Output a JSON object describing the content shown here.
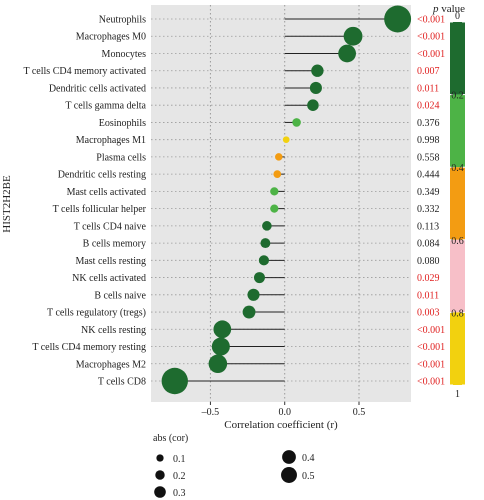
{
  "chart_data": {
    "type": "scatter",
    "xlabel": "Correlation coefficient (r)",
    "ylabel": "HIST2H2BE",
    "xlim": [
      -0.9,
      0.85
    ],
    "xticks": [
      {
        "value": -0.5,
        "label": "–0.5"
      },
      {
        "value": 0.0,
        "label": "0.0"
      },
      {
        "value": 0.5,
        "label": "0.5"
      }
    ],
    "grid": true,
    "categories": [
      "Neutrophils",
      "Macrophages M0",
      "Monocytes",
      "T cells CD4 memory activated",
      "Dendritic cells activated",
      "T cells gamma delta",
      "Eosinophils",
      "Macrophages M1",
      "Plasma cells",
      "Dendritic cells resting",
      "Mast cells activated",
      "T cells follicular helper",
      "T cells CD4 naive",
      "B cells memory",
      "Mast cells resting",
      "NK cells activated",
      "B cells naive",
      "T cells regulatory (tregs)",
      "NK cells resting",
      "T cells CD4 memory resting",
      "Macrophages M2",
      "T cells CD8"
    ],
    "r": [
      0.76,
      0.46,
      0.42,
      0.22,
      0.21,
      0.19,
      0.08,
      0.01,
      -0.04,
      -0.05,
      -0.07,
      -0.07,
      -0.12,
      -0.13,
      -0.14,
      -0.17,
      -0.21,
      -0.24,
      -0.42,
      -0.43,
      -0.45,
      -0.74
    ],
    "pvalues": [
      "<0.001",
      "<0.001",
      "<0.001",
      "0.007",
      "0.011",
      "0.024",
      "0.376",
      "0.998",
      "0.558",
      "0.444",
      "0.349",
      "0.332",
      "0.113",
      "0.084",
      "0.080",
      "0.029",
      "0.011",
      "0.003",
      "<0.001",
      "<0.001",
      "<0.001",
      "<0.001"
    ],
    "pvalue_numeric": [
      0.0005,
      0.0005,
      0.0005,
      0.007,
      0.011,
      0.024,
      0.376,
      0.998,
      0.558,
      0.444,
      0.349,
      0.332,
      0.113,
      0.084,
      0.08,
      0.029,
      0.011,
      0.003,
      0.0005,
      0.0005,
      0.0005,
      0.0005
    ],
    "significance_threshold": 0.05,
    "colorbar": {
      "title_italic": "p",
      "title_rest": " value",
      "ticks": [
        0,
        0.2,
        0.4,
        0.6,
        0.8,
        1
      ],
      "tick_labels": [
        "0",
        "0.2",
        "0.4",
        "0.6",
        "0.8",
        "1"
      ],
      "bands": [
        {
          "from": 0,
          "to": 0.2,
          "color": "#1e6b2f"
        },
        {
          "from": 0.2,
          "to": 0.4,
          "color": "#4db346"
        },
        {
          "from": 0.4,
          "to": 0.6,
          "color": "#f39c12"
        },
        {
          "from": 0.6,
          "to": 0.8,
          "color": "#f7bfc8"
        },
        {
          "from": 0.8,
          "to": 1.0,
          "color": "#f2d10f"
        }
      ]
    },
    "size_legend": {
      "title": "abs (cor)",
      "entries": [
        {
          "value": 0.1,
          "label": "0.1"
        },
        {
          "value": 0.2,
          "label": "0.2"
        },
        {
          "value": 0.3,
          "label": "0.3"
        },
        {
          "value": 0.4,
          "label": "0.4"
        },
        {
          "value": 0.5,
          "label": "0.5"
        }
      ]
    },
    "colors": {
      "panel_bg": "#e6e6e6",
      "grid": "#9a9a9a",
      "significant_text": "#e02020",
      "normal_text": "#222222"
    }
  }
}
